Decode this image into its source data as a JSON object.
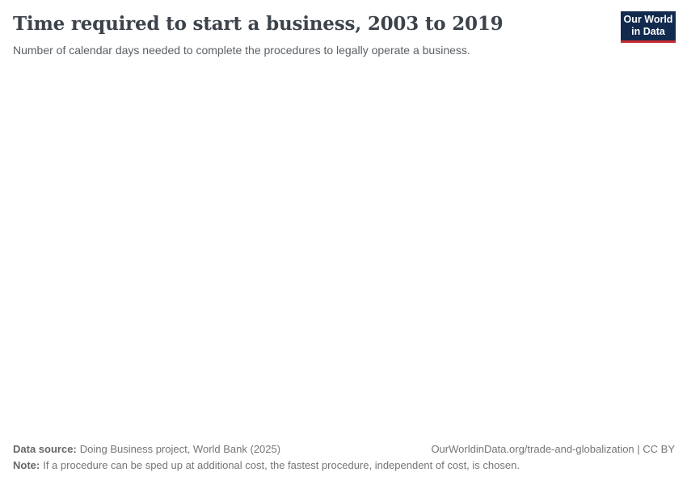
{
  "header": {
    "title": "Time required to start a business, 2003 to 2019",
    "subtitle": "Number of calendar days needed to complete the procedures to legally operate a business."
  },
  "logo": {
    "line1": "Our World",
    "line2": "in Data",
    "background_color": "#122a4e",
    "stripe_color": "#c52b33",
    "text_color": "#ffffff"
  },
  "chart_data": {
    "type": "line",
    "title": "Time required to start a business, 2003 to 2019",
    "subtitle": "Number of calendar days needed to complete the procedures to legally operate a business.",
    "x_range": [
      2003,
      2019
    ],
    "series": [],
    "plot_area_rendered": false
  },
  "footer": {
    "data_source_label": "Data source:",
    "data_source_value": "Doing Business project, World Bank (2025)",
    "citation_link": "OurWorldinData.org/trade-and-globalization | CC BY",
    "note_label": "Note:",
    "note_text": "If a procedure can be sped up at additional cost, the fastest procedure, independent of cost, is chosen."
  }
}
